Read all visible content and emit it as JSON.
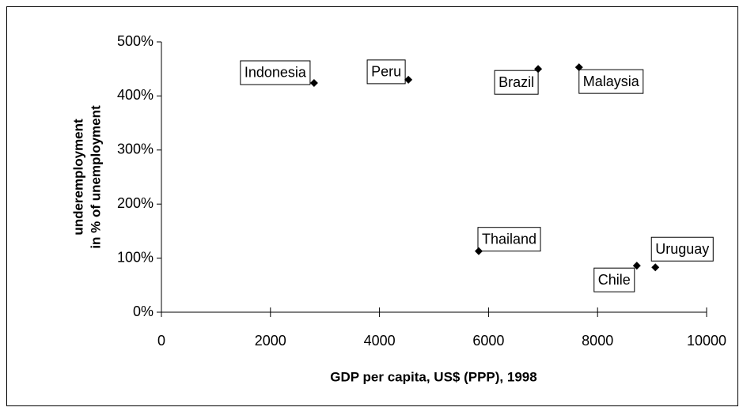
{
  "chart_data": {
    "type": "scatter",
    "xlabel": "GDP per capita, US$ (PPP), 1998",
    "ylabel": [
      "underemployment",
      "in % of unemployment"
    ],
    "labels": [
      "Indonesia",
      "Peru",
      "Brazil",
      "Malaysia",
      "Thailand",
      "Chile",
      "Uruguay"
    ],
    "x": [
      2800,
      4530,
      6910,
      7660,
      5820,
      8720,
      9060
    ],
    "values": [
      424,
      430,
      450,
      453,
      113,
      86,
      83
    ],
    "color": "#000000",
    "xlim": [
      0,
      10000
    ],
    "xticks": [
      0,
      2000,
      4000,
      6000,
      8000,
      10000
    ],
    "ylim": [
      0,
      500
    ],
    "yticks": [
      {
        "value": 0,
        "label": "0%"
      },
      {
        "value": 100,
        "label": "100%"
      },
      {
        "value": 200,
        "label": "200%"
      },
      {
        "value": 300,
        "label": "300%"
      },
      {
        "value": 400,
        "label": "400%"
      },
      {
        "value": 500,
        "label": "500%"
      }
    ]
  }
}
